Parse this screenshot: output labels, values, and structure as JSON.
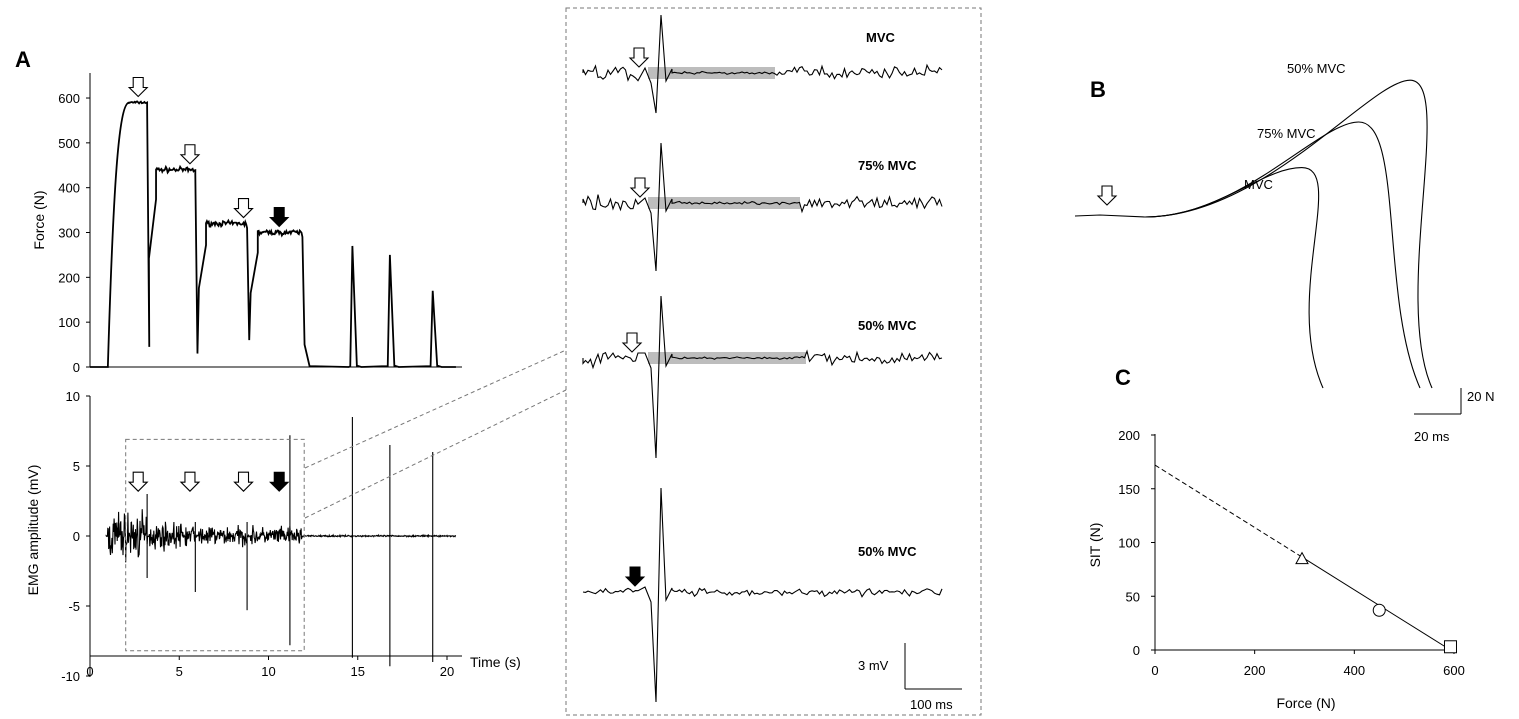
{
  "panels": {
    "A": "A",
    "B": "B",
    "C": "C"
  },
  "chart_data": [
    {
      "id": "force-trace",
      "type": "line",
      "ylabel": "Force (N)",
      "ylim": [
        0,
        600
      ],
      "yticks": [
        0,
        100,
        200,
        300,
        400,
        500,
        600
      ],
      "xlim": [
        0,
        22
      ],
      "contractions": [
        {
          "onset": 1.0,
          "plateau": 590,
          "release": 3.2,
          "superimposed_twitch_time": 2.7
        },
        {
          "onset": 3.3,
          "plateau": 440,
          "release": 5.9,
          "superimposed_twitch_time": 5.6
        },
        {
          "onset": 6.1,
          "plateau": 320,
          "release": 8.8,
          "superimposed_twitch_time": 8.6
        },
        {
          "onset": 9.0,
          "plateau": 300,
          "release": 11.9,
          "superimposed_twitch_time": 10.6
        }
      ],
      "resting_twitches": [
        {
          "time": 14.7,
          "peak": 270
        },
        {
          "time": 16.8,
          "peak": 250
        },
        {
          "time": 19.2,
          "peak": 170
        }
      ],
      "open_arrow_times": [
        2.7,
        5.6,
        8.6
      ],
      "filled_arrow_times": [
        10.6
      ]
    },
    {
      "id": "emg-trace",
      "type": "line",
      "ylabel": "EMG amplitude (mV)",
      "xlabel": "Time (s)",
      "ylim": [
        -10,
        10
      ],
      "yticks": [
        -10,
        -5,
        0,
        5,
        10
      ],
      "xlim": [
        0,
        22
      ],
      "xticks": [
        0,
        5,
        10,
        15,
        20
      ],
      "noise_segments": [
        [
          1.0,
          3.2,
          2.5
        ],
        [
          3.3,
          5.9,
          1.3
        ],
        [
          6.1,
          8.8,
          1.0
        ],
        [
          9.0,
          11.9,
          0.9
        ]
      ],
      "stimulus_artifacts": [
        {
          "time": 3.2,
          "max": 3,
          "min": -3
        },
        {
          "time": 5.9,
          "max": 1,
          "min": -4
        },
        {
          "time": 8.8,
          "max": 1,
          "min": -5.3
        },
        {
          "time": 11.2,
          "max": 7.2,
          "min": -7.8
        },
        {
          "time": 14.7,
          "max": 8.5,
          "min": -8.7
        },
        {
          "time": 16.8,
          "max": 6.5,
          "min": -9.3
        },
        {
          "time": 19.2,
          "max": 6,
          "min": -9
        }
      ],
      "zoom_box_time_range": [
        2,
        12
      ],
      "zoom_box_amplitude_range": [
        -8.2,
        6.9
      ]
    },
    {
      "id": "raw-emg-sweeps",
      "type": "line",
      "traces": [
        {
          "label": "MVC",
          "arrow": "open",
          "shaded": true
        },
        {
          "label": "75% MVC",
          "arrow": "open",
          "shaded": true
        },
        {
          "label": "50% MVC",
          "arrow": "open",
          "shaded": true
        },
        {
          "label": "50% MVC",
          "arrow": "filled",
          "shaded": false
        }
      ],
      "scale_bar": {
        "amplitude_label": "3 mV",
        "time_label": "100 ms"
      }
    },
    {
      "id": "superimposed-twitches",
      "type": "line",
      "curves": [
        {
          "label": "50% MVC",
          "peak_N": 72,
          "peak_ms": 93
        },
        {
          "label": "75% MVC",
          "peak_N": 50,
          "peak_ms": 75
        },
        {
          "label": "MVC",
          "peak_N": 26,
          "peak_ms": 55
        }
      ],
      "scale_bar": {
        "force_label": "20 N",
        "time_label": "20 ms"
      }
    },
    {
      "id": "sit-vs-force",
      "type": "scatter",
      "xlabel": "Force (N)",
      "ylabel": "SIT (N)",
      "xlim": [
        0,
        600
      ],
      "ylim": [
        0,
        200
      ],
      "xticks": [
        0,
        200,
        400,
        600
      ],
      "yticks": [
        0,
        50,
        100,
        150,
        200
      ],
      "points": [
        {
          "x": 295,
          "y": 85,
          "marker": "triangle"
        },
        {
          "x": 450,
          "y": 37,
          "marker": "circle"
        },
        {
          "x": 593,
          "y": 3,
          "marker": "square"
        }
      ],
      "fit_line": {
        "x0": 0,
        "y0": 172,
        "x1": 593,
        "y1": 0
      }
    }
  ]
}
